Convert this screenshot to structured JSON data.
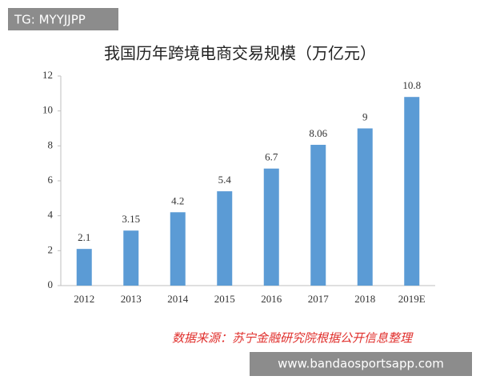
{
  "chart_data": {
    "type": "bar",
    "title": "我国历年跨境电商交易规模（万亿元）",
    "categories": [
      "2012",
      "2013",
      "2014",
      "2015",
      "2016",
      "2017",
      "2018",
      "2019E"
    ],
    "values": [
      2.1,
      3.15,
      4.2,
      5.4,
      6.7,
      8.06,
      9,
      10.8
    ],
    "color": "#5b9bd5",
    "ylim": [
      0,
      12
    ],
    "yticks": [
      0,
      2,
      4,
      6,
      8,
      10,
      12
    ],
    "grid": false,
    "source": "数据来源：苏宁金融研究院根据公开信息整理",
    "watermark": "TG: MYYJJPP",
    "site": "www.bandaosportsapp.com"
  }
}
